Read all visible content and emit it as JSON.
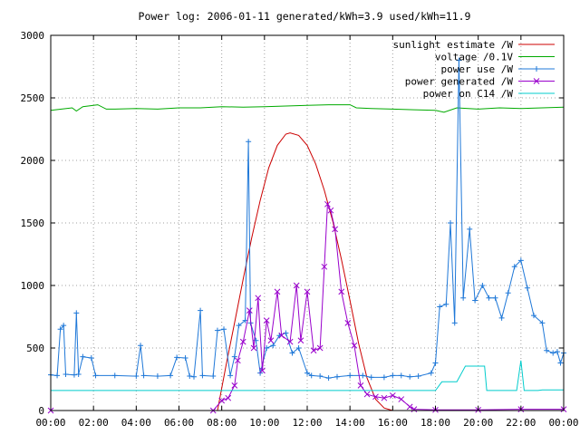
{
  "chart_data": {
    "type": "line",
    "title": "Power log: 2006-01-11 generated/kWh=3.9 used/kWh=11.9",
    "xlabel": "",
    "ylabel": "",
    "xlim": [
      0,
      24
    ],
    "ylim": [
      0,
      3000
    ],
    "x_ticks": [
      "00:00",
      "02:00",
      "04:00",
      "06:00",
      "08:00",
      "10:00",
      "12:00",
      "14:00",
      "16:00",
      "18:00",
      "20:00",
      "22:00",
      "00:00"
    ],
    "y_ticks": [
      "0",
      "500",
      "1000",
      "1500",
      "2000",
      "2500",
      "3000"
    ],
    "grid": true,
    "legend_position": "top-right",
    "series": [
      {
        "name": "sunlight estimate /W",
        "color": "#cc0000",
        "marker": "none",
        "points": [
          [
            7.8,
            0
          ],
          [
            8.2,
            360
          ],
          [
            8.6,
            700
          ],
          [
            9.0,
            1050
          ],
          [
            9.4,
            1380
          ],
          [
            9.8,
            1680
          ],
          [
            10.2,
            1940
          ],
          [
            10.6,
            2120
          ],
          [
            11.0,
            2210
          ],
          [
            11.2,
            2220
          ],
          [
            11.6,
            2200
          ],
          [
            12.0,
            2120
          ],
          [
            12.4,
            1970
          ],
          [
            12.8,
            1760
          ],
          [
            13.2,
            1510
          ],
          [
            13.6,
            1210
          ],
          [
            14.0,
            880
          ],
          [
            14.4,
            540
          ],
          [
            14.8,
            260
          ],
          [
            15.2,
            90
          ],
          [
            15.6,
            20
          ],
          [
            16.0,
            0
          ]
        ]
      },
      {
        "name": "voltage /0.1V",
        "color": "#00aa00",
        "marker": "none",
        "points": [
          [
            0,
            2400
          ],
          [
            0.5,
            2410
          ],
          [
            1.0,
            2420
          ],
          [
            1.2,
            2395
          ],
          [
            1.5,
            2430
          ],
          [
            2.0,
            2440
          ],
          [
            2.2,
            2445
          ],
          [
            2.6,
            2410
          ],
          [
            3.0,
            2410
          ],
          [
            4.0,
            2415
          ],
          [
            5.0,
            2410
          ],
          [
            6.0,
            2420
          ],
          [
            7.0,
            2420
          ],
          [
            8.0,
            2430
          ],
          [
            9.0,
            2425
          ],
          [
            10.0,
            2430
          ],
          [
            11.0,
            2435
          ],
          [
            12.0,
            2440
          ],
          [
            13.0,
            2445
          ],
          [
            14.0,
            2445
          ],
          [
            14.3,
            2420
          ],
          [
            15.0,
            2415
          ],
          [
            16.0,
            2410
          ],
          [
            17.0,
            2405
          ],
          [
            18.0,
            2400
          ],
          [
            18.4,
            2385
          ],
          [
            19.0,
            2420
          ],
          [
            20.0,
            2410
          ],
          [
            21.0,
            2420
          ],
          [
            22.0,
            2415
          ],
          [
            23.0,
            2420
          ],
          [
            24.0,
            2425
          ]
        ]
      },
      {
        "name": "power use /W",
        "color": "#1f78d8",
        "marker": "plus",
        "points": [
          [
            0,
            285
          ],
          [
            0.3,
            280
          ],
          [
            0.45,
            650
          ],
          [
            0.6,
            680
          ],
          [
            0.7,
            290
          ],
          [
            1.1,
            285
          ],
          [
            1.2,
            780
          ],
          [
            1.3,
            290
          ],
          [
            1.5,
            430
          ],
          [
            1.9,
            420
          ],
          [
            2.1,
            280
          ],
          [
            3.0,
            280
          ],
          [
            4.0,
            275
          ],
          [
            4.2,
            520
          ],
          [
            4.35,
            280
          ],
          [
            5.0,
            275
          ],
          [
            5.6,
            280
          ],
          [
            5.9,
            425
          ],
          [
            6.3,
            420
          ],
          [
            6.5,
            275
          ],
          [
            6.7,
            270
          ],
          [
            7.0,
            800
          ],
          [
            7.1,
            280
          ],
          [
            7.6,
            275
          ],
          [
            7.8,
            640
          ],
          [
            8.1,
            650
          ],
          [
            8.4,
            280
          ],
          [
            8.6,
            430
          ],
          [
            8.8,
            680
          ],
          [
            9.1,
            720
          ],
          [
            9.25,
            2150
          ],
          [
            9.35,
            700
          ],
          [
            9.6,
            560
          ],
          [
            9.8,
            300
          ],
          [
            10.1,
            500
          ],
          [
            10.4,
            520
          ],
          [
            10.7,
            600
          ],
          [
            11.0,
            620
          ],
          [
            11.3,
            460
          ],
          [
            11.6,
            500
          ],
          [
            12.0,
            300
          ],
          [
            12.2,
            280
          ],
          [
            12.6,
            275
          ],
          [
            13.0,
            260
          ],
          [
            13.4,
            270
          ],
          [
            14.0,
            280
          ],
          [
            14.6,
            280
          ],
          [
            15.0,
            265
          ],
          [
            15.6,
            265
          ],
          [
            16.0,
            280
          ],
          [
            16.4,
            280
          ],
          [
            16.8,
            270
          ],
          [
            17.2,
            275
          ],
          [
            17.8,
            300
          ],
          [
            18.0,
            380
          ],
          [
            18.2,
            830
          ],
          [
            18.5,
            850
          ],
          [
            18.7,
            1500
          ],
          [
            18.9,
            700
          ],
          [
            19.1,
            2800
          ],
          [
            19.3,
            900
          ],
          [
            19.6,
            1450
          ],
          [
            19.85,
            880
          ],
          [
            20.2,
            1000
          ],
          [
            20.5,
            900
          ],
          [
            20.8,
            900
          ],
          [
            21.1,
            740
          ],
          [
            21.4,
            940
          ],
          [
            21.7,
            1150
          ],
          [
            22.0,
            1200
          ],
          [
            22.3,
            980
          ],
          [
            22.6,
            760
          ],
          [
            23.0,
            700
          ],
          [
            23.2,
            480
          ],
          [
            23.5,
            460
          ],
          [
            23.7,
            470
          ],
          [
            23.85,
            380
          ],
          [
            24.0,
            460
          ]
        ]
      },
      {
        "name": "power generated /W",
        "color": "#9900cc",
        "marker": "cross",
        "points": [
          [
            0,
            0
          ],
          [
            7.6,
            0
          ],
          [
            8.0,
            80
          ],
          [
            8.3,
            100
          ],
          [
            8.6,
            200
          ],
          [
            8.75,
            400
          ],
          [
            9.0,
            550
          ],
          [
            9.3,
            800
          ],
          [
            9.5,
            500
          ],
          [
            9.7,
            900
          ],
          [
            9.9,
            320
          ],
          [
            10.1,
            720
          ],
          [
            10.3,
            560
          ],
          [
            10.6,
            950
          ],
          [
            10.8,
            600
          ],
          [
            11.2,
            550
          ],
          [
            11.5,
            1000
          ],
          [
            11.7,
            560
          ],
          [
            12.0,
            950
          ],
          [
            12.3,
            480
          ],
          [
            12.6,
            500
          ],
          [
            12.8,
            1150
          ],
          [
            12.95,
            1650
          ],
          [
            13.1,
            1600
          ],
          [
            13.3,
            1450
          ],
          [
            13.6,
            950
          ],
          [
            13.9,
            700
          ],
          [
            14.2,
            520
          ],
          [
            14.5,
            200
          ],
          [
            14.8,
            130
          ],
          [
            15.2,
            110
          ],
          [
            15.6,
            100
          ],
          [
            16.0,
            120
          ],
          [
            16.4,
            90
          ],
          [
            16.8,
            30
          ],
          [
            17.0,
            10
          ],
          [
            18.0,
            5
          ],
          [
            20.0,
            5
          ],
          [
            22.0,
            10
          ],
          [
            24.0,
            10
          ]
        ]
      },
      {
        "name": "power on C14 /W",
        "color": "#00cccc",
        "marker": "none",
        "points": [
          [
            0,
            160
          ],
          [
            16.0,
            160
          ],
          [
            18.0,
            160
          ],
          [
            18.3,
            230
          ],
          [
            19.0,
            230
          ],
          [
            19.4,
            355
          ],
          [
            20.3,
            355
          ],
          [
            20.4,
            160
          ],
          [
            21.8,
            160
          ],
          [
            22.0,
            400
          ],
          [
            22.15,
            160
          ],
          [
            22.8,
            160
          ],
          [
            23.0,
            165
          ],
          [
            24.0,
            165
          ]
        ]
      }
    ]
  }
}
